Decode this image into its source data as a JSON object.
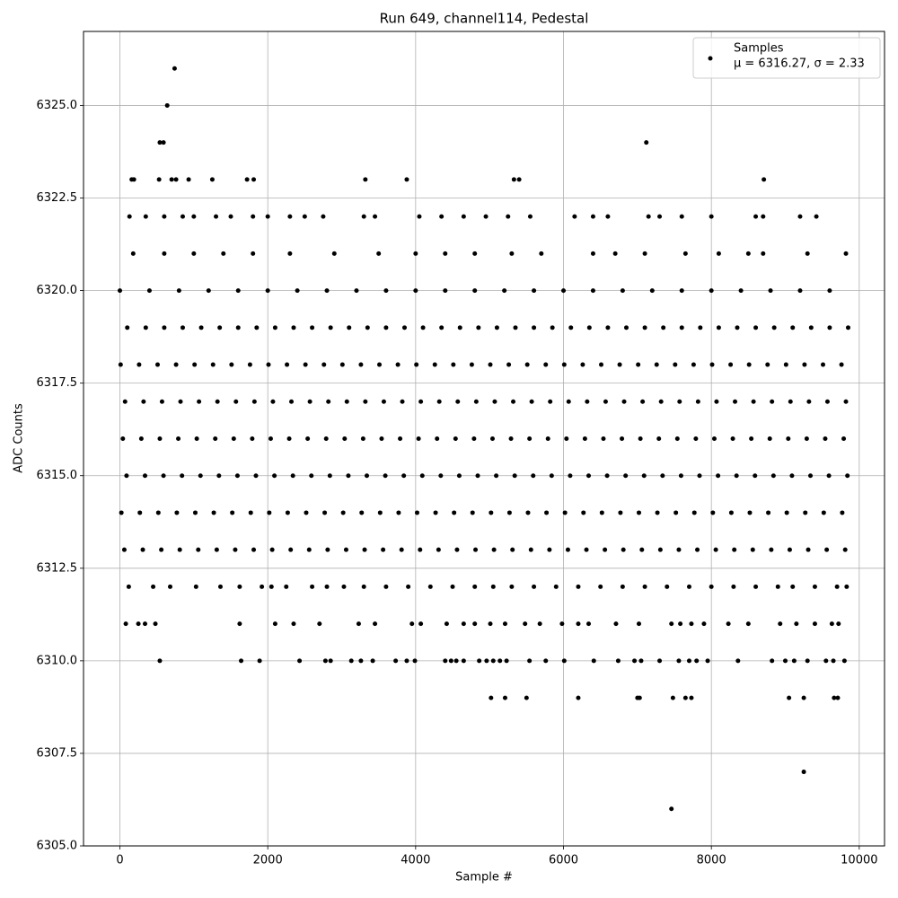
{
  "chart_data": {
    "type": "scatter",
    "title": "Run 649, channel114, Pedestal",
    "x_label": "Sample #",
    "y_label": "ADC Counts",
    "legend_position": "upper right",
    "legend_subtitle": "μ = 6316.27, σ = 2.33",
    "grid": true,
    "xlim": [
      -492,
      10342
    ],
    "ylim": [
      6305,
      6327
    ],
    "xticks": [
      0,
      2000,
      4000,
      6000,
      8000,
      10000
    ],
    "yticks": [
      {
        "value": 6305,
        "label": "6305.0"
      },
      6307.5,
      {
        "value": 6310,
        "label": "6310.0"
      },
      6312.5,
      {
        "value": 6315,
        "label": "6315.0"
      },
      6317.5,
      {
        "value": 6320,
        "label": "6320.0"
      },
      6322.5,
      {
        "value": 6325,
        "label": "6325.0"
      }
    ],
    "x": [
      740,
      640,
      540,
      590,
      7120,
      160,
      190,
      530,
      700,
      760,
      930,
      1250,
      1720,
      1810,
      3320,
      3880,
      5330,
      5400,
      8710,
      7460,
      9250,
      5020,
      5210,
      5500,
      6200,
      7000,
      7030,
      7480,
      7650,
      7730,
      9050,
      9250,
      9660,
      9710,
      540,
      1640,
      1890,
      2430,
      2780,
      2850,
      3130,
      3260,
      3420,
      3730,
      3880,
      3990,
      4400,
      4480,
      4550,
      4650,
      4860,
      4960,
      5050,
      5140,
      5230,
      5540,
      5760,
      6010,
      6410,
      6740,
      6960,
      7050,
      7300,
      7560,
      7700,
      7800,
      7950,
      8360,
      8820,
      9000,
      9120,
      9300,
      9550,
      9650,
      9800,
      80,
      250,
      340,
      480,
      1620,
      2100,
      2350,
      2700,
      3230,
      3450,
      3950,
      4070,
      4420,
      4650,
      4800,
      5010,
      5210,
      5480,
      5680,
      5980,
      6200,
      6340,
      6710,
      7020,
      7460,
      7580,
      7730,
      7900,
      8230,
      8500,
      8930,
      9150,
      9400,
      9630,
      9720,
      120,
      450,
      680,
      1030,
      1360,
      1620,
      1920,
      2050,
      2250,
      2600,
      2800,
      3030,
      3300,
      3600,
      3900,
      4200,
      4500,
      4800,
      5050,
      5300,
      5600,
      5900,
      6200,
      6500,
      6800,
      7100,
      7400,
      7700,
      8000,
      8300,
      8600,
      8900,
      9100,
      9400,
      9700,
      9830,
      60,
      310,
      560,
      810,
      1060,
      1310,
      1560,
      1810,
      2060,
      2310,
      2560,
      2810,
      3060,
      3310,
      3560,
      3810,
      4060,
      4310,
      4560,
      4810,
      5060,
      5310,
      5560,
      5810,
      6060,
      6310,
      6560,
      6810,
      7060,
      7310,
      7560,
      7810,
      8060,
      8310,
      8560,
      8810,
      9060,
      9310,
      9560,
      9810,
      20,
      270,
      520,
      770,
      1020,
      1270,
      1520,
      1770,
      2020,
      2270,
      2520,
      2770,
      3020,
      3270,
      3520,
      3770,
      4020,
      4270,
      4520,
      4770,
      5020,
      5270,
      5520,
      5770,
      6020,
      6270,
      6520,
      6770,
      7020,
      7270,
      7520,
      7770,
      8020,
      8270,
      8520,
      8770,
      9020,
      9270,
      9520,
      9770,
      90,
      340,
      590,
      840,
      1090,
      1340,
      1590,
      1840,
      2090,
      2340,
      2590,
      2840,
      3090,
      3340,
      3590,
      3840,
      4090,
      4340,
      4590,
      4840,
      5090,
      5340,
      5590,
      5840,
      6090,
      6340,
      6590,
      6840,
      7090,
      7340,
      7590,
      7840,
      8090,
      8340,
      8590,
      8840,
      9090,
      9340,
      9590,
      9840,
      40,
      290,
      540,
      790,
      1040,
      1290,
      1540,
      1790,
      2040,
      2290,
      2540,
      2790,
      3040,
      3290,
      3540,
      3790,
      4040,
      4290,
      4540,
      4790,
      5040,
      5290,
      5540,
      5790,
      6040,
      6290,
      6540,
      6790,
      7040,
      7290,
      7540,
      7790,
      8040,
      8290,
      8540,
      8790,
      9040,
      9290,
      9540,
      9790,
      70,
      320,
      570,
      820,
      1070,
      1320,
      1570,
      1820,
      2070,
      2320,
      2570,
      2820,
      3070,
      3320,
      3570,
      3820,
      4070,
      4320,
      4570,
      4820,
      5070,
      5320,
      5570,
      5820,
      6070,
      6320,
      6570,
      6820,
      7070,
      7320,
      7570,
      7820,
      8070,
      8320,
      8570,
      8820,
      9070,
      9320,
      9570,
      9820,
      10,
      260,
      510,
      760,
      1010,
      1260,
      1510,
      1760,
      2010,
      2260,
      2510,
      2760,
      3010,
      3260,
      3510,
      3760,
      4010,
      4260,
      4510,
      4760,
      5010,
      5260,
      5510,
      5760,
      6010,
      6260,
      6510,
      6760,
      7010,
      7260,
      7510,
      7760,
      8010,
      8260,
      8510,
      8760,
      9010,
      9260,
      9510,
      9760,
      100,
      350,
      600,
      850,
      1100,
      1350,
      1600,
      1850,
      2100,
      2350,
      2600,
      2850,
      3100,
      3350,
      3600,
      3850,
      4100,
      4350,
      4600,
      4850,
      5100,
      5350,
      5600,
      5850,
      6100,
      6350,
      6600,
      6850,
      7100,
      7350,
      7600,
      7850,
      8100,
      8350,
      8600,
      8850,
      9100,
      9350,
      9600,
      9850,
      0,
      400,
      800,
      1200,
      1600,
      2000,
      2400,
      2800,
      3200,
      3600,
      4000,
      4400,
      4800,
      5200,
      5600,
      6000,
      6400,
      6800,
      7200,
      7600,
      8000,
      8400,
      8800,
      9200,
      9600,
      180,
      600,
      1000,
      1400,
      1800,
      2300,
      2900,
      3500,
      4000,
      4400,
      4800,
      5300,
      5700,
      6400,
      6700,
      7100,
      7650,
      8100,
      8500,
      8700,
      9300,
      9820,
      130,
      350,
      600,
      850,
      1000,
      1300,
      1500,
      1800,
      2000,
      2300,
      2500,
      2750,
      3300,
      3450,
      4050,
      4350,
      4650,
      4950,
      5250,
      5550,
      6150,
      6400,
      6600,
      7150,
      7300,
      7600,
      8000,
      8600,
      8700,
      9200,
      9420
    ],
    "series": [
      {
        "name": "Samples",
        "color": "#000000",
        "values": [
          6326,
          6325,
          6324,
          6324,
          6324,
          6323,
          6323,
          6323,
          6323,
          6323,
          6323,
          6323,
          6323,
          6323,
          6323,
          6323,
          6323,
          6323,
          6323,
          6306,
          6307,
          6309,
          6309,
          6309,
          6309,
          6309,
          6309,
          6309,
          6309,
          6309,
          6309,
          6309,
          6309,
          6309,
          6310,
          6310,
          6310,
          6310,
          6310,
          6310,
          6310,
          6310,
          6310,
          6310,
          6310,
          6310,
          6310,
          6310,
          6310,
          6310,
          6310,
          6310,
          6310,
          6310,
          6310,
          6310,
          6310,
          6310,
          6310,
          6310,
          6310,
          6310,
          6310,
          6310,
          6310,
          6310,
          6310,
          6310,
          6310,
          6310,
          6310,
          6310,
          6310,
          6310,
          6310,
          6311,
          6311,
          6311,
          6311,
          6311,
          6311,
          6311,
          6311,
          6311,
          6311,
          6311,
          6311,
          6311,
          6311,
          6311,
          6311,
          6311,
          6311,
          6311,
          6311,
          6311,
          6311,
          6311,
          6311,
          6311,
          6311,
          6311,
          6311,
          6311,
          6311,
          6311,
          6311,
          6311,
          6311,
          6311,
          6312,
          6312,
          6312,
          6312,
          6312,
          6312,
          6312,
          6312,
          6312,
          6312,
          6312,
          6312,
          6312,
          6312,
          6312,
          6312,
          6312,
          6312,
          6312,
          6312,
          6312,
          6312,
          6312,
          6312,
          6312,
          6312,
          6312,
          6312,
          6312,
          6312,
          6312,
          6312,
          6312,
          6312,
          6312,
          6312,
          6313,
          6313,
          6313,
          6313,
          6313,
          6313,
          6313,
          6313,
          6313,
          6313,
          6313,
          6313,
          6313,
          6313,
          6313,
          6313,
          6313,
          6313,
          6313,
          6313,
          6313,
          6313,
          6313,
          6313,
          6313,
          6313,
          6313,
          6313,
          6313,
          6313,
          6313,
          6313,
          6313,
          6313,
          6313,
          6313,
          6313,
          6313,
          6313,
          6313,
          6314,
          6314,
          6314,
          6314,
          6314,
          6314,
          6314,
          6314,
          6314,
          6314,
          6314,
          6314,
          6314,
          6314,
          6314,
          6314,
          6314,
          6314,
          6314,
          6314,
          6314,
          6314,
          6314,
          6314,
          6314,
          6314,
          6314,
          6314,
          6314,
          6314,
          6314,
          6314,
          6314,
          6314,
          6314,
          6314,
          6314,
          6314,
          6314,
          6314,
          6315,
          6315,
          6315,
          6315,
          6315,
          6315,
          6315,
          6315,
          6315,
          6315,
          6315,
          6315,
          6315,
          6315,
          6315,
          6315,
          6315,
          6315,
          6315,
          6315,
          6315,
          6315,
          6315,
          6315,
          6315,
          6315,
          6315,
          6315,
          6315,
          6315,
          6315,
          6315,
          6315,
          6315,
          6315,
          6315,
          6315,
          6315,
          6315,
          6315,
          6316,
          6316,
          6316,
          6316,
          6316,
          6316,
          6316,
          6316,
          6316,
          6316,
          6316,
          6316,
          6316,
          6316,
          6316,
          6316,
          6316,
          6316,
          6316,
          6316,
          6316,
          6316,
          6316,
          6316,
          6316,
          6316,
          6316,
          6316,
          6316,
          6316,
          6316,
          6316,
          6316,
          6316,
          6316,
          6316,
          6316,
          6316,
          6316,
          6316,
          6317,
          6317,
          6317,
          6317,
          6317,
          6317,
          6317,
          6317,
          6317,
          6317,
          6317,
          6317,
          6317,
          6317,
          6317,
          6317,
          6317,
          6317,
          6317,
          6317,
          6317,
          6317,
          6317,
          6317,
          6317,
          6317,
          6317,
          6317,
          6317,
          6317,
          6317,
          6317,
          6317,
          6317,
          6317,
          6317,
          6317,
          6317,
          6317,
          6317,
          6318,
          6318,
          6318,
          6318,
          6318,
          6318,
          6318,
          6318,
          6318,
          6318,
          6318,
          6318,
          6318,
          6318,
          6318,
          6318,
          6318,
          6318,
          6318,
          6318,
          6318,
          6318,
          6318,
          6318,
          6318,
          6318,
          6318,
          6318,
          6318,
          6318,
          6318,
          6318,
          6318,
          6318,
          6318,
          6318,
          6318,
          6318,
          6318,
          6318,
          6319,
          6319,
          6319,
          6319,
          6319,
          6319,
          6319,
          6319,
          6319,
          6319,
          6319,
          6319,
          6319,
          6319,
          6319,
          6319,
          6319,
          6319,
          6319,
          6319,
          6319,
          6319,
          6319,
          6319,
          6319,
          6319,
          6319,
          6319,
          6319,
          6319,
          6319,
          6319,
          6319,
          6319,
          6319,
          6319,
          6319,
          6319,
          6319,
          6319,
          6320,
          6320,
          6320,
          6320,
          6320,
          6320,
          6320,
          6320,
          6320,
          6320,
          6320,
          6320,
          6320,
          6320,
          6320,
          6320,
          6320,
          6320,
          6320,
          6320,
          6320,
          6320,
          6320,
          6320,
          6320,
          6321,
          6321,
          6321,
          6321,
          6321,
          6321,
          6321,
          6321,
          6321,
          6321,
          6321,
          6321,
          6321,
          6321,
          6321,
          6321,
          6321,
          6321,
          6321,
          6321,
          6321,
          6321,
          6322,
          6322,
          6322,
          6322,
          6322,
          6322,
          6322,
          6322,
          6322,
          6322,
          6322,
          6322,
          6322,
          6322,
          6322,
          6322,
          6322,
          6322,
          6322,
          6322,
          6322,
          6322,
          6322,
          6322,
          6322,
          6322,
          6322,
          6322,
          6322,
          6322,
          6322
        ]
      }
    ]
  }
}
